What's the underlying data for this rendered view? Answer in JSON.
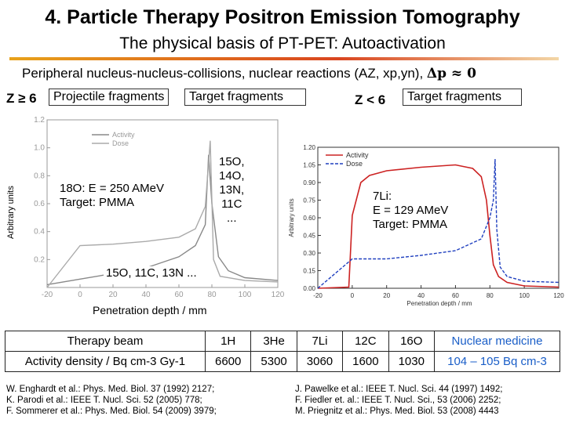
{
  "header": {
    "title": "4. Particle Therapy Positron Emission Tomography",
    "subtitle": "The physical basis of PT-PET: Autoactivation"
  },
  "intro": {
    "text": "Peripheral nucleus-nucleus-collisions, nuclear reactions (AZ, xp,yn),",
    "formula": "Δp ≈ 0"
  },
  "labels": {
    "z_ge": "Z ≥ 6",
    "z_lt": "Z < 6",
    "projectile_fragments": "Projectile fragments",
    "target_fragments_left": "Target fragments",
    "target_fragments_right": "Target fragments",
    "arbitrary_units": "Arbitrary units",
    "penetration_depth": "Penetration depth / mm"
  },
  "left_plot": {
    "beam": "18O: E = 250 AMeV",
    "target": "Target: PMMA",
    "isotopes_peak": [
      "15O,",
      "14O,",
      "13N,",
      "11C",
      "..."
    ],
    "isotopes_bottom": "15O, 11C, 13N ...",
    "legend": [
      "Activity",
      "Dose"
    ]
  },
  "right_plot": {
    "beam": "7Li:",
    "energy": "E = 129 AMeV",
    "target": "Target: PMMA",
    "legend": [
      "Activity",
      "Dose"
    ],
    "ylabel": "Arbitrary units",
    "xlabel": "Penetration depth / mm"
  },
  "chart_data": [
    {
      "type": "line",
      "xlabel": "Penetration depth / mm",
      "ylabel": "Arbitrary units",
      "xlim": [
        -20,
        120
      ],
      "ylim": [
        0,
        1.2
      ],
      "x_ticks": [
        "-20",
        "0",
        "20",
        "40",
        "60",
        "80",
        "100",
        "120"
      ],
      "y_ticks": [
        "0.2",
        "0.4",
        "0.6",
        "0.8",
        "1.0",
        "1.2"
      ],
      "series": [
        {
          "name": "Activity",
          "x": [
            -20,
            0,
            20,
            40,
            60,
            70,
            76,
            78,
            80,
            84,
            90,
            100,
            120
          ],
          "y": [
            0.02,
            0.06,
            0.1,
            0.14,
            0.22,
            0.3,
            0.45,
            0.95,
            0.6,
            0.22,
            0.12,
            0.07,
            0.05
          ]
        },
        {
          "name": "Dose",
          "x": [
            -20,
            0,
            20,
            40,
            60,
            70,
            76,
            79,
            81,
            85,
            100,
            120
          ],
          "y": [
            0.0,
            0.3,
            0.31,
            0.33,
            0.36,
            0.42,
            0.58,
            1.05,
            0.2,
            0.08,
            0.05,
            0.04
          ]
        }
      ]
    },
    {
      "type": "line",
      "xlabel": "Penetration depth / mm",
      "ylabel": "Arbitrary units",
      "xlim": [
        -20,
        120
      ],
      "ylim": [
        0,
        1.2
      ],
      "x_ticks": [
        "-20",
        "0",
        "20",
        "40",
        "60",
        "80",
        "100",
        "120"
      ],
      "y_ticks": [
        "0.00",
        "0.15",
        "0.30",
        "0.45",
        "0.60",
        "0.75",
        "0.90",
        "1.05",
        "1.20"
      ],
      "series": [
        {
          "name": "Activity",
          "x": [
            -20,
            -2,
            0,
            5,
            10,
            20,
            40,
            60,
            70,
            75,
            78,
            80,
            82,
            85,
            90,
            100,
            120
          ],
          "y": [
            0.0,
            0.01,
            0.62,
            0.9,
            0.96,
            1.0,
            1.03,
            1.05,
            1.02,
            0.95,
            0.75,
            0.45,
            0.2,
            0.1,
            0.05,
            0.02,
            0.01
          ]
        },
        {
          "name": "Dose",
          "x": [
            -20,
            0,
            20,
            40,
            60,
            75,
            80,
            82,
            83,
            84,
            86,
            90,
            100,
            120
          ],
          "y": [
            0.0,
            0.25,
            0.25,
            0.28,
            0.32,
            0.42,
            0.6,
            0.75,
            1.1,
            0.5,
            0.18,
            0.1,
            0.06,
            0.05
          ]
        }
      ]
    }
  ],
  "table": {
    "row1": [
      "Therapy beam",
      "1H",
      "3He",
      "7Li",
      "12C",
      "16O",
      "Nuclear medicine"
    ],
    "row2": [
      "Activity density / Bq cm-3 Gy-1",
      "6600",
      "5300",
      "3060",
      "1600",
      "1030",
      "104 – 105 Bq cm-3"
    ]
  },
  "references": {
    "left": [
      "W. Enghardt et al.: Phys. Med. Biol. 37 (1992) 2127;",
      "K. Parodi et al.: IEEE T. Nucl. Sci. 52 (2005) 778;",
      "F. Sommerer et al.: Phys. Med. Biol. 54 (2009) 3979;"
    ],
    "right": [
      "J. Pawelke et al.: IEEE T. Nucl. Sci. 44 (1997) 1492;",
      "F. Fiedler et. al.: IEEE T. Nucl. Sci., 53 (2006) 2252;",
      "M. Priegnitz et al.: Phys. Med. Biol. 53 (2008) 4443"
    ]
  },
  "colors": {
    "activity_right": "#cc2222",
    "dose_right": "#1f3fbf",
    "activity_left": "#888888",
    "dose_left": "#aaaaaa",
    "nuclear_medicine": "#1a5ec8"
  }
}
